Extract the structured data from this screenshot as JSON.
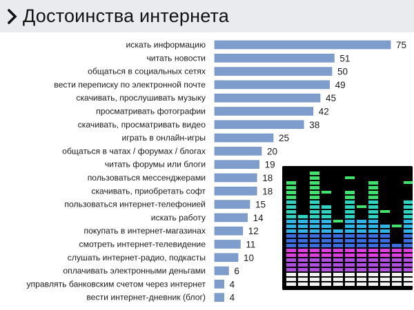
{
  "header": {
    "title": "Достоинства интернета",
    "icon": "chevron-right-icon"
  },
  "colors": {
    "bar": "#7f9dcc",
    "bar_edge": "#6f8ec0",
    "header_bg": "#e9ebee",
    "text": "#1a1a1a"
  },
  "chart_data": {
    "type": "bar",
    "orientation": "horizontal",
    "title": "Достоинства интернета",
    "xlabel": "",
    "ylabel": "",
    "xlim": [
      0,
      80
    ],
    "grid": false,
    "legend": "none",
    "categories": [
      "искать информацию",
      "читать новости",
      "общаться в социальных сетях",
      "вести переписку по электронной почте",
      "скачивать, прослушивать музыку",
      "просматривать фотографии",
      "скачивать, просматривать видео",
      "играть в онлайн-игры",
      "общаться в чатах / форумах / блогах",
      "читать форумы или блоги",
      "пользоваться мессенджерами",
      "скачивать, приобретать софт",
      "пользоваться интернет-телефонией",
      "искать работу",
      "покупать в интернет-магазинах",
      "смотреть интернет-телевидение",
      "слушать интернет-радио, подкасты",
      "оплачивать электронными деньгами",
      "управлять банковским счетом через интернет",
      "вести интернет-дневник (блог)"
    ],
    "values": [
      75,
      51,
      50,
      49,
      45,
      42,
      38,
      25,
      20,
      19,
      18,
      18,
      15,
      14,
      12,
      11,
      10,
      6,
      4,
      4
    ]
  },
  "image": {
    "description_icon": "equalizer-image-icon",
    "colors": [
      "#ffffff",
      "#7a37c8",
      "#d72fd6",
      "#2f6bd6",
      "#2fc0e0",
      "#35d977",
      "#39e35a"
    ]
  }
}
